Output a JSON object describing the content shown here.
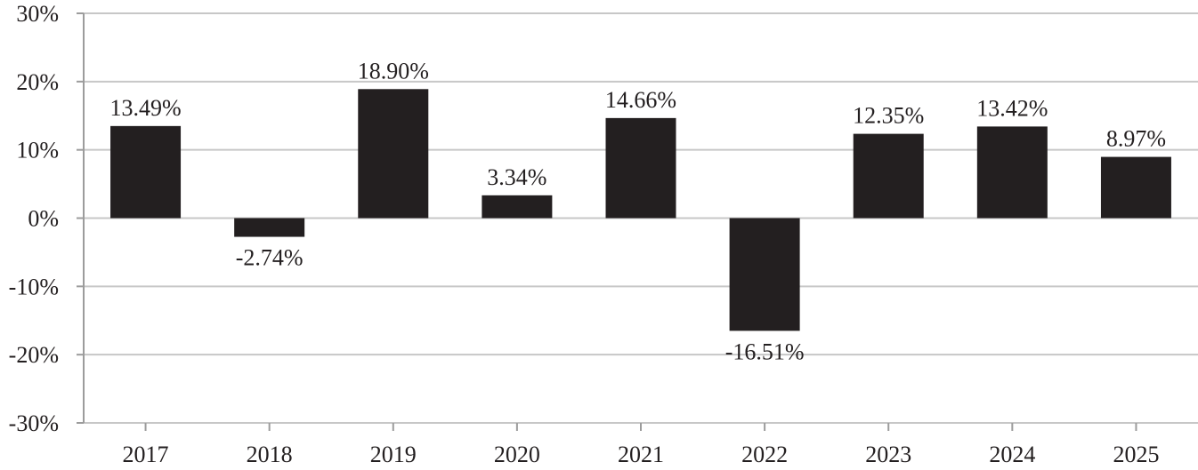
{
  "chart_data": {
    "type": "bar",
    "categories": [
      "2017",
      "2018",
      "2019",
      "2020",
      "2021",
      "2022",
      "2023",
      "2024",
      "2025"
    ],
    "values": [
      13.49,
      -2.74,
      18.9,
      3.34,
      14.66,
      -16.51,
      12.35,
      13.42,
      8.97
    ],
    "data_labels": [
      "13.49%",
      "-2.74%",
      "18.90%",
      "3.34%",
      "14.66%",
      "-16.51%",
      "12.35%",
      "13.42%",
      "8.97%"
    ],
    "title": "",
    "xlabel": "",
    "ylabel": "",
    "ylim": [
      -30,
      30
    ],
    "y_ticks": [
      30,
      20,
      10,
      0,
      -10,
      -20,
      -30
    ],
    "y_tick_labels": [
      "30%",
      "20%",
      "10%",
      "0%",
      "-10%",
      "-20%",
      "-30%"
    ],
    "grid": true,
    "legend": "none",
    "bar_color": "#231f20",
    "grid_color": "#c7c7c7",
    "axis_color": "#9c9c9c",
    "text_color": "#231f20"
  }
}
